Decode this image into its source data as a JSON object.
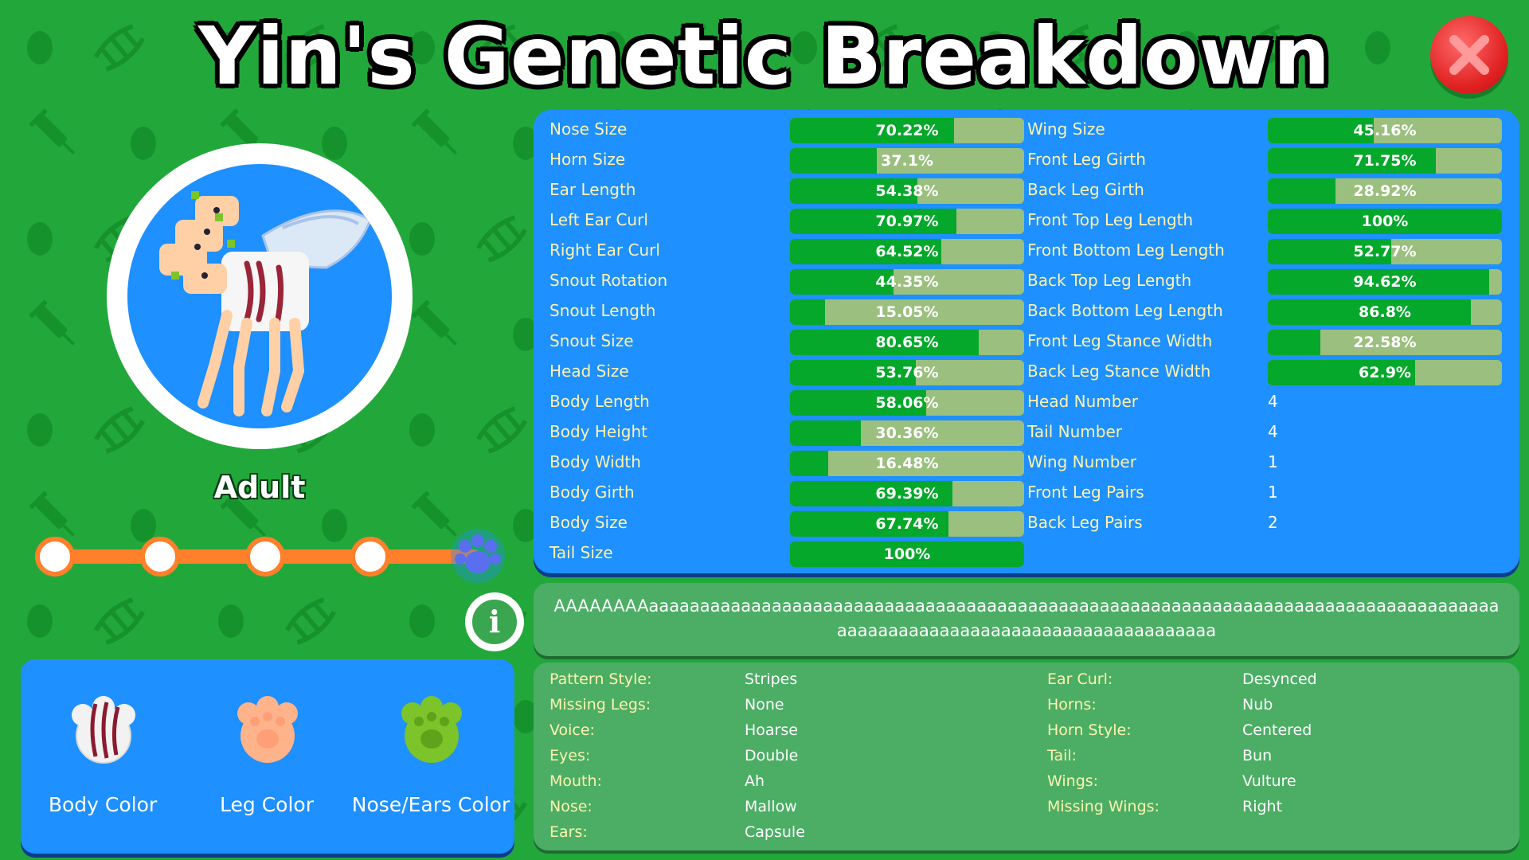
{
  "title": "Yin's Genetic Breakdown",
  "stage": "Adult",
  "description": "AAAAAAAAaaaaaaaaaaaaaaaaaaaaaaaaaaaaaaaaaaaaaaaaaaaaaaaaaaaaaaaaaaaaaaaaaaaaaaaaaaaaaaaaaaaaaaaaaaaaaaaaaaaaaaaaaaaaaaaaaaaaaaaa",
  "growth": {
    "stages": 5,
    "current_stage": 5
  },
  "colors": {
    "background": "#22a83a",
    "panel_blue": "#1e90ff",
    "bar_fill": "#05a82a",
    "bar_empty": "#9bbf7e",
    "progress_track": "#ff7f2a",
    "close_red": "#e02020",
    "label_yellow": "#fff3b0"
  },
  "color_buttons": [
    {
      "label": "Body Color",
      "icon": "body-color-swatch-icon",
      "color": "#f2f2f2",
      "accent": "#8b1a2e"
    },
    {
      "label": "Leg Color",
      "icon": "leg-color-swatch-icon",
      "color": "#ffb38a"
    },
    {
      "label": "Nose/Ears Color",
      "icon": "nose-ears-color-swatch-icon",
      "color": "#7cc42a"
    }
  ],
  "stats_left": [
    {
      "name": "Nose Size",
      "value": "70.22%",
      "pct": 70.22
    },
    {
      "name": "Horn Size",
      "value": "37.1%",
      "pct": 37.1
    },
    {
      "name": "Ear Length",
      "value": "54.38%",
      "pct": 54.38
    },
    {
      "name": "Left Ear Curl",
      "value": "70.97%",
      "pct": 70.97
    },
    {
      "name": "Right Ear Curl",
      "value": "64.52%",
      "pct": 64.52
    },
    {
      "name": "Snout Rotation",
      "value": "44.35%",
      "pct": 44.35
    },
    {
      "name": "Snout Length",
      "value": "15.05%",
      "pct": 15.05
    },
    {
      "name": "Snout Size",
      "value": "80.65%",
      "pct": 80.65
    },
    {
      "name": "Head Size",
      "value": "53.76%",
      "pct": 53.76
    },
    {
      "name": "Body Length",
      "value": "58.06%",
      "pct": 58.06
    },
    {
      "name": "Body Height",
      "value": "30.36%",
      "pct": 30.36
    },
    {
      "name": "Body Width",
      "value": "16.48%",
      "pct": 16.48
    },
    {
      "name": "Body Girth",
      "value": "69.39%",
      "pct": 69.39
    },
    {
      "name": "Body Size",
      "value": "67.74%",
      "pct": 67.74
    },
    {
      "name": "Tail Size",
      "value": "100%",
      "pct": 100
    }
  ],
  "stats_right": [
    {
      "name": "Wing Size",
      "value": "45.16%",
      "pct": 45.16
    },
    {
      "name": "Front Leg Girth",
      "value": "71.75%",
      "pct": 71.75
    },
    {
      "name": "Back Leg Girth",
      "value": "28.92%",
      "pct": 28.92
    },
    {
      "name": "Front Top Leg Length",
      "value": "100%",
      "pct": 100
    },
    {
      "name": "Front Bottom Leg Length",
      "value": "52.77%",
      "pct": 52.77
    },
    {
      "name": "Back Top Leg Length",
      "value": "94.62%",
      "pct": 94.62
    },
    {
      "name": "Back Bottom Leg Length",
      "value": "86.8%",
      "pct": 86.8
    },
    {
      "name": "Front Leg Stance Width",
      "value": "22.58%",
      "pct": 22.58
    },
    {
      "name": "Back Leg Stance Width",
      "value": "62.9%",
      "pct": 62.9
    },
    {
      "name": "Head Number",
      "value": "4"
    },
    {
      "name": "Tail Number",
      "value": "4"
    },
    {
      "name": "Wing Number",
      "value": "1"
    },
    {
      "name": "Front Leg Pairs",
      "value": "1"
    },
    {
      "name": "Back Leg Pairs",
      "value": "2"
    }
  ],
  "traits_left": [
    {
      "name": "Pattern Style:",
      "value": "Stripes"
    },
    {
      "name": "Missing Legs:",
      "value": "None"
    },
    {
      "name": "Voice:",
      "value": "Hoarse"
    },
    {
      "name": "Eyes:",
      "value": "Double"
    },
    {
      "name": "Mouth:",
      "value": "Ah"
    },
    {
      "name": "Nose:",
      "value": "Mallow"
    },
    {
      "name": "Ears:",
      "value": "Capsule"
    }
  ],
  "traits_right": [
    {
      "name": "Ear Curl:",
      "value": "Desynced"
    },
    {
      "name": "Horns:",
      "value": "Nub"
    },
    {
      "name": "Horn Style:",
      "value": "Centered"
    },
    {
      "name": "Tail:",
      "value": "Bun"
    },
    {
      "name": "Wings:",
      "value": "Vulture"
    },
    {
      "name": "Missing Wings:",
      "value": "Right"
    }
  ]
}
